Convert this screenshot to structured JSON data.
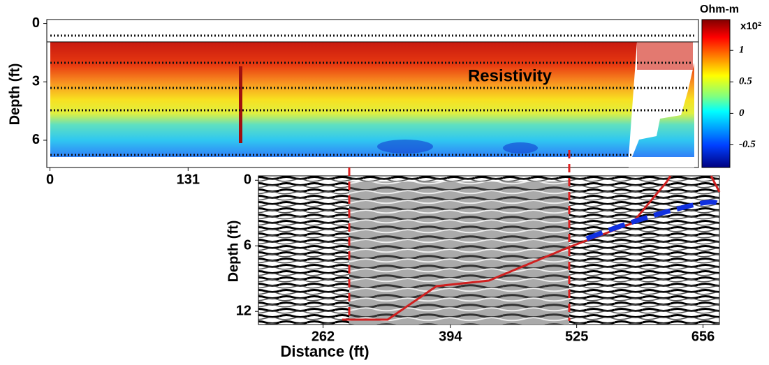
{
  "chart_data": [
    {
      "type": "heatmap",
      "title": "Resistivity",
      "ylabel": "Depth (ft)",
      "xlim": [
        -3,
        615
      ],
      "xticks": [
        0,
        131
      ],
      "ylim": [
        -0.2,
        7.4
      ],
      "yticks": [
        0,
        3,
        6
      ],
      "colorbar": {
        "title": "Ohm-m",
        "multiplier": "x10²",
        "lim": [
          -0.86,
          1.49
        ],
        "ticks": [
          1,
          0.5,
          0,
          -0.5
        ]
      }
    },
    {
      "type": "radargram",
      "xlabel": "Distance (ft)",
      "ylabel": "Depth (ft)",
      "xlim": [
        195,
        673
      ],
      "xticks": [
        262,
        394,
        525,
        656
      ],
      "ylim": [
        -0.4,
        13.2
      ],
      "yticks": [
        0,
        6,
        12
      ]
    }
  ]
}
